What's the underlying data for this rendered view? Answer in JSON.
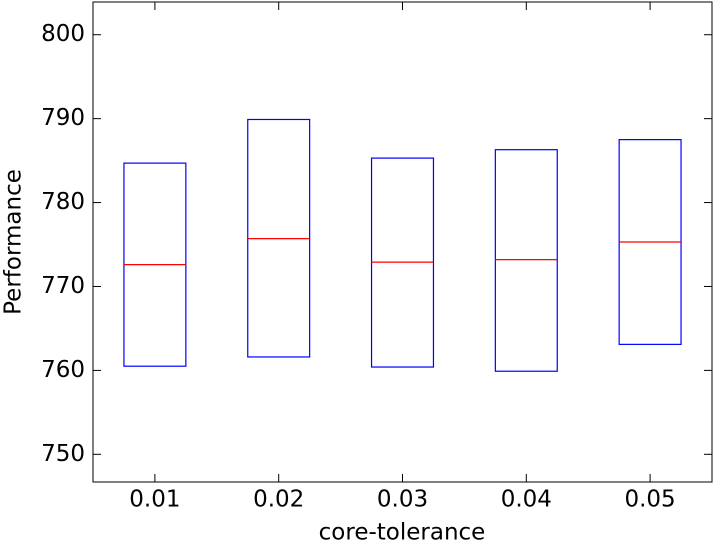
{
  "chart_data": {
    "type": "box",
    "xlabel": "core-tolerance",
    "ylabel": "Performance",
    "categories": [
      "0.01",
      "0.02",
      "0.03",
      "0.04",
      "0.05"
    ],
    "q1": [
      760.5,
      761.6,
      760.4,
      759.9,
      763.1
    ],
    "median": [
      772.6,
      775.7,
      772.9,
      773.2,
      775.3
    ],
    "q3": [
      784.7,
      789.9,
      785.3,
      786.3,
      787.5
    ],
    "box_color": "#0000ff",
    "median_color": "#ff0000",
    "ylim": [
      746.7,
      803.9
    ],
    "yticks": [
      750,
      760,
      770,
      780,
      790,
      800
    ],
    "grid": false
  }
}
